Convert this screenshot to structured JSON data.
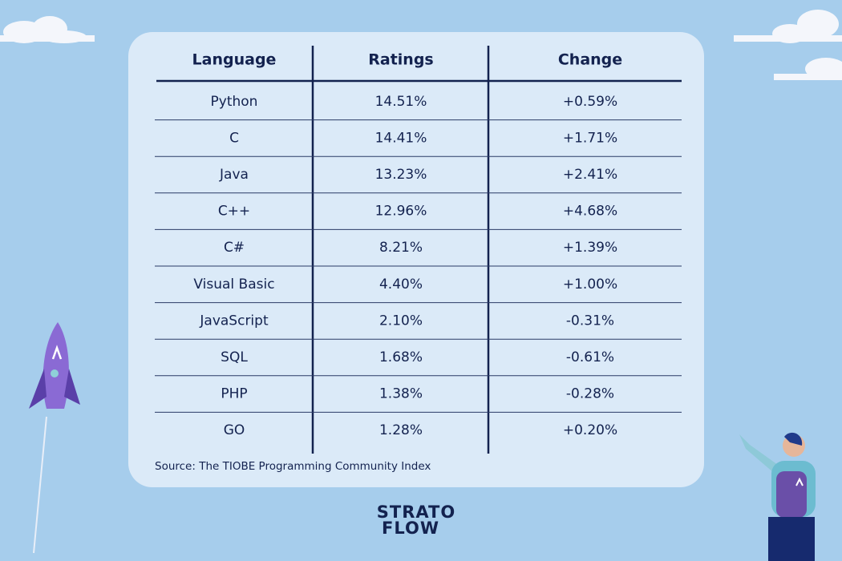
{
  "table": {
    "header": [
      "Language",
      "Ratings",
      "Change"
    ],
    "rows": [
      [
        "Python",
        "14.51%",
        "+0.59%"
      ],
      [
        "C",
        "14.41%",
        "+1.71%"
      ],
      [
        "Java",
        "13.23%",
        "+2.41%"
      ],
      [
        "C++",
        "12.96%",
        "+4.68%"
      ],
      [
        "C#",
        "8.21%",
        "+1.39%"
      ],
      [
        "Visual Basic",
        "4.40%",
        "+1.00%"
      ],
      [
        "JavaScript",
        "2.10%",
        "-0.31%"
      ],
      [
        "SQL",
        "1.68%",
        "-0.61%"
      ],
      [
        "PHP",
        "1.38%",
        "-0.28%"
      ],
      [
        "GO",
        "1.28%",
        "+0.20%"
      ]
    ],
    "source": "Source: The TIOBE Programming Community Index"
  },
  "logo": [
    "STRATO",
    "FLOW"
  ]
}
